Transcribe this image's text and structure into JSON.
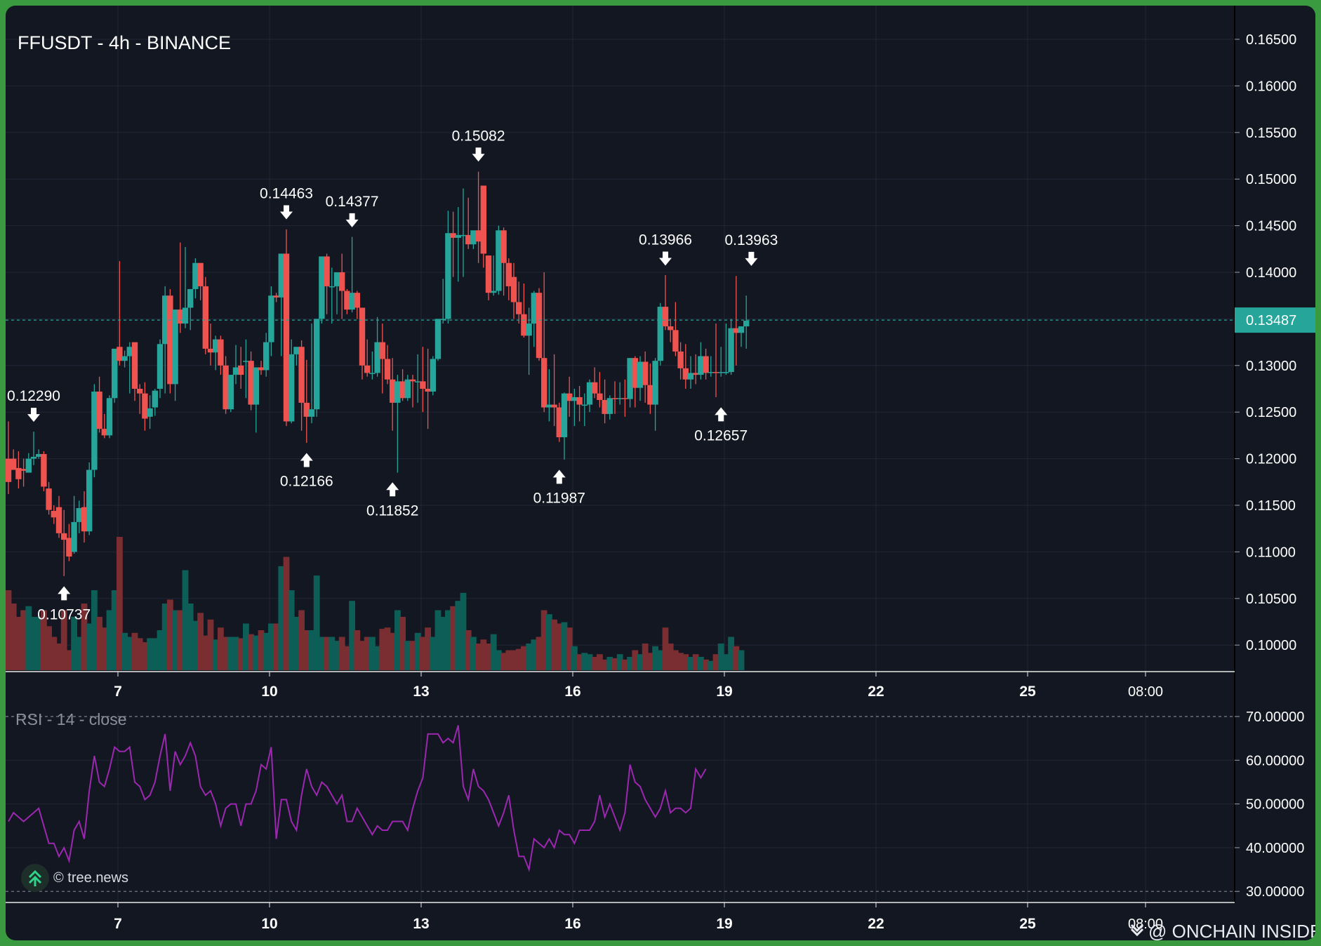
{
  "title": "FFUSDT - 4h - BINANCE",
  "rsi_label": "RSI - 14 - close",
  "credit": "© tree.news",
  "watermark": "@ ONCHAIN INSIDER",
  "colors": {
    "background": "#131722",
    "frame": "#3a9a3f",
    "up": "#26a69a",
    "down": "#ef5350",
    "up_volume": "#0e5e58",
    "down_volume": "#7a2e31",
    "rsi_line": "#9c27b0",
    "price_line": "#26a69a",
    "grid": "#232734"
  },
  "chart_data": [
    {
      "type": "candlestick",
      "title": "FFUSDT - 4h - BINANCE",
      "y_ticks": [
        "0.16500",
        "0.16000",
        "0.15500",
        "0.15000",
        "0.14500",
        "0.14000",
        "0.13500",
        "0.13000",
        "0.12500",
        "0.12000",
        "0.11500",
        "0.11000",
        "0.10500",
        "0.10000"
      ],
      "ylim": [
        0.0968,
        0.1673
      ],
      "x_ticks": [
        "7",
        "10",
        "13",
        "16",
        "19",
        "22",
        "25",
        "08:00"
      ],
      "current_price": "0.13487",
      "grid": true,
      "ohlc": [
        [
          0.12,
          0.124,
          0.1175,
          0.1162
        ],
        [
          0.12,
          0.121,
          0.1188,
          0.1192
        ],
        [
          0.119,
          0.1208,
          0.1178,
          0.1168
        ],
        [
          0.1189,
          0.12,
          0.1187,
          0.117
        ],
        [
          0.1185,
          0.1206,
          0.12,
          0.1188
        ],
        [
          0.12,
          0.1229,
          0.1202,
          0.1193
        ],
        [
          0.1202,
          0.121,
          0.1205,
          0.12
        ],
        [
          0.1205,
          0.1208,
          0.117,
          0.1165
        ],
        [
          0.1168,
          0.1175,
          0.1145,
          0.114
        ],
        [
          0.1144,
          0.115,
          0.1137,
          0.113
        ],
        [
          0.1148,
          0.116,
          0.112,
          0.1115
        ],
        [
          0.112,
          0.1145,
          0.1113,
          0.1074
        ],
        [
          0.1115,
          0.113,
          0.1095,
          0.109
        ],
        [
          0.11,
          0.116,
          0.1132,
          0.1098
        ],
        [
          0.1132,
          0.1155,
          0.1147,
          0.112
        ],
        [
          0.1148,
          0.1165,
          0.1122,
          0.111
        ],
        [
          0.1122,
          0.1196,
          0.1188,
          0.1118
        ],
        [
          0.1188,
          0.128,
          0.1272,
          0.118
        ],
        [
          0.1272,
          0.1288,
          0.1232,
          0.1228
        ],
        [
          0.1232,
          0.1248,
          0.1225,
          0.1222
        ],
        [
          0.1225,
          0.1268,
          0.1265,
          0.1222
        ],
        [
          0.1265,
          0.1312,
          0.1318,
          0.126
        ],
        [
          0.132,
          0.1412,
          0.1305,
          0.13
        ],
        [
          0.1305,
          0.1316,
          0.131,
          0.1298
        ],
        [
          0.131,
          0.1325,
          0.132,
          0.127
        ],
        [
          0.1325,
          0.1325,
          0.1275,
          0.1262
        ],
        [
          0.1275,
          0.128,
          0.127,
          0.1248
        ],
        [
          0.127,
          0.1282,
          0.1243,
          0.123
        ],
        [
          0.1245,
          0.1268,
          0.1254,
          0.1232
        ],
        [
          0.1255,
          0.1275,
          0.1273,
          0.1246
        ],
        [
          0.1275,
          0.1328,
          0.1323,
          0.1265
        ],
        [
          0.1323,
          0.1385,
          0.1375,
          0.127
        ],
        [
          0.1375,
          0.1382,
          0.128,
          0.127
        ],
        [
          0.128,
          0.136,
          0.136,
          0.1262
        ],
        [
          0.136,
          0.1432,
          0.1345,
          0.1335
        ],
        [
          0.1345,
          0.1427,
          0.1362,
          0.134
        ],
        [
          0.1362,
          0.1372,
          0.1382,
          0.1338
        ],
        [
          0.1382,
          0.1415,
          0.141,
          0.1372
        ],
        [
          0.141,
          0.141,
          0.1385,
          0.137
        ],
        [
          0.1385,
          0.1395,
          0.1318,
          0.1312
        ],
        [
          0.1318,
          0.1345,
          0.1314,
          0.13
        ],
        [
          0.1314,
          0.1332,
          0.1328,
          0.1295
        ],
        [
          0.1328,
          0.1332,
          0.13,
          0.129
        ],
        [
          0.13,
          0.131,
          0.1253,
          0.1248
        ],
        [
          0.1253,
          0.129,
          0.129,
          0.125
        ],
        [
          0.129,
          0.1322,
          0.1298,
          0.128
        ],
        [
          0.13,
          0.132,
          0.129,
          0.1275
        ],
        [
          0.1305,
          0.1328,
          0.1305,
          0.1265
        ],
        [
          0.1305,
          0.1315,
          0.1258,
          0.1252
        ],
        [
          0.1258,
          0.1298,
          0.1298,
          0.1228
        ],
        [
          0.1298,
          0.1305,
          0.1295,
          0.129
        ],
        [
          0.1295,
          0.1335,
          0.1325,
          0.1288
        ],
        [
          0.1325,
          0.1385,
          0.1375,
          0.131
        ],
        [
          0.1375,
          0.1378,
          0.1373,
          0.1368
        ],
        [
          0.1373,
          0.142,
          0.142,
          0.131
        ],
        [
          0.142,
          0.1446,
          0.124,
          0.1235
        ],
        [
          0.124,
          0.1328,
          0.1312,
          0.1238
        ],
        [
          0.1312,
          0.1318,
          0.132,
          0.13
        ],
        [
          0.132,
          0.1327,
          0.126,
          0.123
        ],
        [
          0.126,
          0.1306,
          0.1245,
          0.1217
        ],
        [
          0.1245,
          0.1345,
          0.1253,
          0.1238
        ],
        [
          0.1253,
          0.135,
          0.135,
          0.1245
        ],
        [
          0.135,
          0.1357,
          0.1417,
          0.1345
        ],
        [
          0.1417,
          0.142,
          0.1385,
          0.1355
        ],
        [
          0.1385,
          0.1405,
          0.1385,
          0.1345
        ],
        [
          0.1385,
          0.14,
          0.14,
          0.1355
        ],
        [
          0.14,
          0.142,
          0.138,
          0.135
        ],
        [
          0.138,
          0.1382,
          0.136,
          0.1355
        ],
        [
          0.136,
          0.1438,
          0.1378,
          0.1357
        ],
        [
          0.1378,
          0.138,
          0.1362,
          0.135
        ],
        [
          0.1362,
          0.135,
          0.13,
          0.1285
        ],
        [
          0.13,
          0.1328,
          0.1292,
          0.1288
        ],
        [
          0.1292,
          0.1315,
          0.1292,
          0.1285
        ],
        [
          0.1292,
          0.1352,
          0.1325,
          0.1288
        ],
        [
          0.1325,
          0.1345,
          0.1307,
          0.127
        ],
        [
          0.1307,
          0.1322,
          0.1285,
          0.128
        ],
        [
          0.1285,
          0.1308,
          0.126,
          0.123
        ],
        [
          0.126,
          0.129,
          0.1283,
          0.1185
        ],
        [
          0.1283,
          0.1296,
          0.1265,
          0.1262
        ],
        [
          0.1265,
          0.129,
          0.1285,
          0.1262
        ],
        [
          0.1285,
          0.129,
          0.1283,
          0.1255
        ],
        [
          0.1283,
          0.1312,
          0.1283,
          0.126
        ],
        [
          0.1283,
          0.132,
          0.1275,
          0.125
        ],
        [
          0.1275,
          0.1318,
          0.1272,
          0.1232
        ],
        [
          0.1272,
          0.131,
          0.1307,
          0.1268
        ],
        [
          0.1307,
          0.135,
          0.135,
          0.1305
        ],
        [
          0.135,
          0.1393,
          0.135,
          0.1345
        ],
        [
          0.135,
          0.1466,
          0.1442,
          0.1345
        ],
        [
          0.1442,
          0.1465,
          0.1437,
          0.1395
        ],
        [
          0.1437,
          0.147,
          0.144,
          0.139
        ],
        [
          0.144,
          0.149,
          0.144,
          0.1395
        ],
        [
          0.144,
          0.148,
          0.143,
          0.1425
        ],
        [
          0.143,
          0.1442,
          0.1445,
          0.1425
        ],
        [
          0.1445,
          0.1508,
          0.1433,
          0.141
        ],
        [
          0.1493,
          0.1493,
          0.142,
          0.1405
        ],
        [
          0.1418,
          0.1418,
          0.1378,
          0.137
        ],
        [
          0.1378,
          0.1418,
          0.138,
          0.1375
        ],
        [
          0.138,
          0.145,
          0.1445,
          0.1376
        ],
        [
          0.1445,
          0.1448,
          0.141,
          0.1375
        ],
        [
          0.141,
          0.1415,
          0.1385,
          0.137
        ],
        [
          0.1395,
          0.141,
          0.1368,
          0.135
        ],
        [
          0.1368,
          0.139,
          0.1355,
          0.1345
        ],
        [
          0.1355,
          0.1388,
          0.1332,
          0.133
        ],
        [
          0.1332,
          0.1362,
          0.1345,
          0.129
        ],
        [
          0.1345,
          0.138,
          0.1378,
          0.132
        ],
        [
          0.1378,
          0.1383,
          0.1308,
          0.1305
        ],
        [
          0.1308,
          0.14,
          0.1255,
          0.125
        ],
        [
          0.1255,
          0.1296,
          0.1258,
          0.124
        ],
        [
          0.1258,
          0.1312,
          0.1255,
          0.1235
        ],
        [
          0.1255,
          0.126,
          0.1223,
          0.1218
        ],
        [
          0.1223,
          0.1271,
          0.127,
          0.1199
        ],
        [
          0.127,
          0.1288,
          0.1262,
          0.1245
        ],
        [
          0.1262,
          0.1275,
          0.1266,
          0.1235
        ],
        [
          0.1266,
          0.1278,
          0.1258,
          0.124
        ],
        [
          0.1258,
          0.127,
          0.1258,
          0.1235
        ],
        [
          0.1258,
          0.1285,
          0.1282,
          0.125
        ],
        [
          0.1282,
          0.1298,
          0.127,
          0.1265
        ],
        [
          0.127,
          0.1293,
          0.1263,
          0.1255
        ],
        [
          0.1263,
          0.1285,
          0.1248,
          0.1238
        ],
        [
          0.1248,
          0.1268,
          0.1265,
          0.1242
        ],
        [
          0.1265,
          0.1283,
          0.1264,
          0.1248
        ],
        [
          0.1264,
          0.1282,
          0.1265,
          0.1258
        ],
        [
          0.1265,
          0.1285,
          0.1264,
          0.1245
        ],
        [
          0.1264,
          0.1308,
          0.1308,
          0.1255
        ],
        [
          0.1308,
          0.131,
          0.1276,
          0.1255
        ],
        [
          0.1276,
          0.131,
          0.1304,
          0.1262
        ],
        [
          0.1304,
          0.1315,
          0.1279,
          0.126
        ],
        [
          0.1279,
          0.1302,
          0.1258,
          0.1248
        ],
        [
          0.1258,
          0.1308,
          0.1305,
          0.123
        ],
        [
          0.1305,
          0.1367,
          0.1363,
          0.13
        ],
        [
          0.1363,
          0.1397,
          0.1342,
          0.1338
        ],
        [
          0.1342,
          0.135,
          0.1338,
          0.1325
        ],
        [
          0.1338,
          0.1368,
          0.1315,
          0.131
        ],
        [
          0.1315,
          0.1325,
          0.1297,
          0.1285
        ],
        [
          0.1297,
          0.1323,
          0.1285,
          0.1275
        ],
        [
          0.1285,
          0.131,
          0.1292,
          0.1275
        ],
        [
          0.1292,
          0.1312,
          0.129,
          0.128
        ],
        [
          0.129,
          0.1325,
          0.131,
          0.1285
        ],
        [
          0.131,
          0.1318,
          0.1292,
          0.1285
        ],
        [
          0.1292,
          0.131,
          0.1293,
          0.1288
        ],
        [
          0.1293,
          0.1345,
          0.1292,
          0.1266
        ],
        [
          0.1292,
          0.132,
          0.1293,
          0.1288
        ],
        [
          0.1293,
          0.1345,
          0.1293,
          0.129
        ],
        [
          0.1293,
          0.135,
          0.134,
          0.129
        ],
        [
          0.134,
          0.1396,
          0.1335,
          0.13
        ],
        [
          0.1335,
          0.1342,
          0.1342,
          0.132
        ],
        [
          0.1342,
          0.1375,
          0.1348,
          0.1318
        ]
      ],
      "volume": [
        0.6,
        0.5,
        0.4,
        0.45,
        0.48,
        0.4,
        0.4,
        0.45,
        0.33,
        0.25,
        0.2,
        0.45,
        0.15,
        0.4,
        0.25,
        0.5,
        0.35,
        0.6,
        0.4,
        0.32,
        0.45,
        0.6,
        1.0,
        0.28,
        0.25,
        0.28,
        0.24,
        0.21,
        0.24,
        0.24,
        0.3,
        0.5,
        0.53,
        0.45,
        0.45,
        0.75,
        0.5,
        0.37,
        0.43,
        0.26,
        0.38,
        0.23,
        0.32,
        0.25,
        0.25,
        0.25,
        0.24,
        0.35,
        0.27,
        0.26,
        0.3,
        0.28,
        0.35,
        0.35,
        0.78,
        0.85,
        0.6,
        0.4,
        0.45,
        0.3,
        0.3,
        0.71,
        0.25,
        0.25,
        0.25,
        0.22,
        0.25,
        0.18,
        0.52,
        0.3,
        0.22,
        0.25,
        0.25,
        0.18,
        0.31,
        0.32,
        0.28,
        0.45,
        0.4,
        0.22,
        0.22,
        0.28,
        0.25,
        0.32,
        0.25,
        0.45,
        0.4,
        0.45,
        0.48,
        0.52,
        0.58,
        0.3,
        0.25,
        0.2,
        0.23,
        0.2,
        0.27,
        0.15,
        0.13,
        0.15,
        0.15,
        0.16,
        0.18,
        0.2,
        0.23,
        0.25,
        0.45,
        0.42,
        0.38,
        0.35,
        0.36,
        0.32,
        0.18,
        0.12,
        0.13,
        0.12,
        0.1,
        0.12,
        0.08,
        0.1,
        0.09,
        0.12,
        0.08,
        0.1,
        0.15,
        0.12,
        0.2,
        0.13,
        0.18,
        0.15,
        0.32,
        0.2,
        0.15,
        0.13,
        0.12,
        0.1,
        0.12,
        0.1,
        0.08,
        0.07,
        0.12,
        0.2,
        0.12,
        0.25,
        0.18,
        0.15
      ],
      "annotations": [
        {
          "label": "0.12290",
          "index": 5,
          "price": 0.1229,
          "dir": "down"
        },
        {
          "label": "0.10737",
          "index": 11,
          "price": 0.10737,
          "dir": "up"
        },
        {
          "label": "0.14463",
          "index": 55,
          "price": 0.14463,
          "dir": "down"
        },
        {
          "label": "0.12166",
          "index": 59,
          "price": 0.12166,
          "dir": "up"
        },
        {
          "label": "0.14377",
          "index": 68,
          "price": 0.14377,
          "dir": "down"
        },
        {
          "label": "0.11852",
          "index": 76,
          "price": 0.11852,
          "dir": "up"
        },
        {
          "label": "0.15082",
          "index": 93,
          "price": 0.15082,
          "dir": "down"
        },
        {
          "label": "0.11987",
          "index": 109,
          "price": 0.11987,
          "dir": "up"
        },
        {
          "label": "0.13966",
          "index": 130,
          "price": 0.13966,
          "dir": "down"
        },
        {
          "label": "0.12657",
          "index": 141,
          "price": 0.12657,
          "dir": "up"
        },
        {
          "label": "0.13963",
          "index": 147,
          "price": 0.13963,
          "dir": "down"
        }
      ]
    },
    {
      "type": "line",
      "title": "RSI - 14 - close",
      "y_ticks": [
        "70.00000",
        "60.00000",
        "50.00000",
        "40.00000",
        "30.00000"
      ],
      "ylim": [
        30,
        70
      ],
      "levels": [
        70,
        30
      ],
      "x_ticks": [
        "7",
        "10",
        "13",
        "16",
        "19",
        "22",
        "25",
        "08:00"
      ],
      "values": [
        46,
        48,
        47,
        46,
        47,
        48,
        49,
        45,
        41,
        41,
        38,
        40,
        37,
        44,
        46,
        42,
        53,
        61,
        55,
        54,
        58,
        63,
        62,
        62,
        63,
        55,
        54,
        51,
        52,
        55,
        61,
        66,
        53,
        62,
        59,
        61,
        64,
        61,
        54,
        52,
        53,
        50,
        45,
        49,
        50,
        50,
        45,
        50,
        50,
        53,
        59,
        58,
        63,
        42,
        51,
        51,
        46,
        44,
        52,
        58,
        54,
        52,
        55,
        54,
        52,
        50,
        52,
        46,
        46,
        49,
        47,
        45,
        43,
        45,
        44,
        44,
        46,
        46,
        46,
        44,
        49,
        53,
        56,
        66,
        66,
        66,
        64,
        65,
        64,
        68,
        54,
        51,
        58,
        54,
        53,
        51,
        48,
        45,
        48,
        52,
        44,
        38,
        38,
        35,
        42,
        41,
        40,
        42,
        40,
        44,
        43,
        43,
        41,
        44,
        44,
        44,
        46,
        52,
        47,
        50,
        47,
        44,
        48,
        59,
        55,
        54,
        51,
        49,
        47,
        49,
        53,
        48,
        49,
        49,
        48,
        49,
        58,
        56,
        58
      ]
    }
  ]
}
